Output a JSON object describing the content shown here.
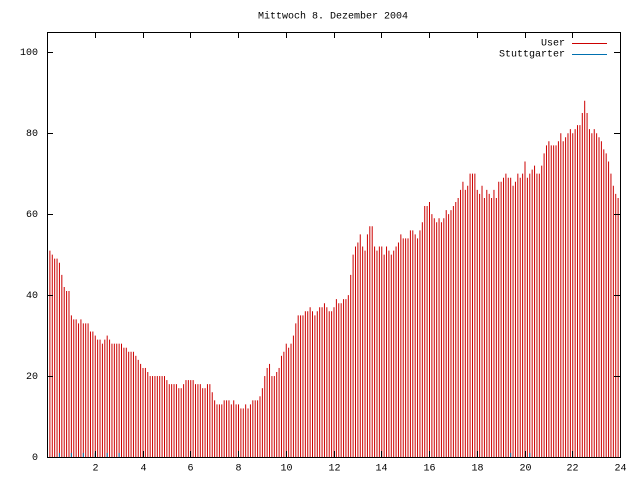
{
  "chart_data": {
    "type": "impulses",
    "title": "Mittwoch 8. Dezember 2004",
    "x": [
      0,
      0.1,
      0.2,
      0.3,
      0.4,
      0.5,
      0.6,
      0.7,
      0.8,
      0.9,
      1,
      1.1,
      1.2,
      1.3,
      1.4,
      1.5,
      1.6,
      1.7,
      1.8,
      1.9,
      2,
      2.1,
      2.2,
      2.3,
      2.4,
      2.5,
      2.6,
      2.7,
      2.8,
      2.9,
      3,
      3.1,
      3.2,
      3.3,
      3.4,
      3.5,
      3.6,
      3.7,
      3.8,
      3.9,
      4,
      4.1,
      4.2,
      4.3,
      4.4,
      4.5,
      4.6,
      4.7,
      4.8,
      4.9,
      5,
      5.1,
      5.2,
      5.3,
      5.4,
      5.5,
      5.6,
      5.7,
      5.8,
      5.9,
      6,
      6.1,
      6.2,
      6.3,
      6.4,
      6.5,
      6.6,
      6.7,
      6.8,
      6.9,
      7,
      7.1,
      7.2,
      7.3,
      7.4,
      7.5,
      7.6,
      7.7,
      7.8,
      7.9,
      8,
      8.1,
      8.2,
      8.3,
      8.4,
      8.5,
      8.6,
      8.7,
      8.8,
      8.9,
      9,
      9.1,
      9.2,
      9.3,
      9.4,
      9.5,
      9.6,
      9.7,
      9.8,
      9.9,
      10,
      10.1,
      10.2,
      10.3,
      10.4,
      10.5,
      10.6,
      10.7,
      10.8,
      10.9,
      11,
      11.1,
      11.2,
      11.3,
      11.4,
      11.5,
      11.6,
      11.7,
      11.8,
      11.9,
      12,
      12.1,
      12.2,
      12.3,
      12.4,
      12.5,
      12.6,
      12.7,
      12.8,
      12.9,
      13,
      13.1,
      13.2,
      13.3,
      13.4,
      13.5,
      13.6,
      13.7,
      13.8,
      13.9,
      14,
      14.1,
      14.2,
      14.3,
      14.4,
      14.5,
      14.6,
      14.7,
      14.8,
      14.9,
      15,
      15.1,
      15.2,
      15.3,
      15.4,
      15.5,
      15.6,
      15.7,
      15.8,
      15.9,
      16,
      16.1,
      16.2,
      16.3,
      16.4,
      16.5,
      16.6,
      16.7,
      16.8,
      16.9,
      17,
      17.1,
      17.2,
      17.3,
      17.4,
      17.5,
      17.6,
      17.7,
      17.8,
      17.9,
      18,
      18.1,
      18.2,
      18.3,
      18.4,
      18.5,
      18.6,
      18.7,
      18.8,
      18.9,
      19,
      19.1,
      19.2,
      19.3,
      19.4,
      19.5,
      19.6,
      19.7,
      19.8,
      19.9,
      20,
      20.1,
      20.2,
      20.3,
      20.4,
      20.5,
      20.6,
      20.7,
      20.8,
      20.9,
      21,
      21.1,
      21.2,
      21.3,
      21.4,
      21.5,
      21.6,
      21.7,
      21.8,
      21.9,
      22,
      22.1,
      22.2,
      22.3,
      22.4,
      22.5,
      22.6,
      22.7,
      22.8,
      22.9,
      23,
      23.1,
      23.2,
      23.3,
      23.4,
      23.5,
      23.6,
      23.7,
      23.8,
      23.9,
      24
    ],
    "series": [
      {
        "name": "User",
        "color": "#cc0000",
        "values": [
          51,
          51,
          50,
          49,
          49,
          48,
          45,
          42,
          41,
          41,
          35,
          34,
          34,
          33,
          34,
          33,
          33,
          33,
          31,
          31,
          30,
          29,
          29,
          28,
          29,
          30,
          29,
          28,
          28,
          28,
          28,
          28,
          27,
          27,
          26,
          26,
          26,
          25,
          24,
          23,
          22,
          22,
          21,
          20,
          20,
          20,
          20,
          20,
          20,
          20,
          19,
          18,
          18,
          18,
          18,
          17,
          17,
          18,
          19,
          19,
          19,
          19,
          18,
          18,
          18,
          17,
          17,
          18,
          18,
          16,
          14,
          13,
          13,
          13,
          14,
          14,
          14,
          13,
          14,
          13,
          13,
          12,
          12,
          13,
          12,
          13,
          14,
          14,
          14,
          15,
          17,
          20,
          22,
          23,
          20,
          20,
          21,
          22,
          25,
          26,
          28,
          27,
          28,
          30,
          33,
          35,
          35,
          35,
          36,
          36,
          37,
          36,
          35,
          36,
          37,
          37,
          38,
          37,
          36,
          36,
          37,
          39,
          38,
          38,
          39,
          39,
          40,
          45,
          50,
          52,
          53,
          55,
          52,
          51,
          55,
          57,
          57,
          52,
          51,
          52,
          52,
          50,
          52,
          51,
          50,
          51,
          52,
          53,
          55,
          54,
          54,
          54,
          56,
          56,
          55,
          54,
          56,
          58,
          62,
          62,
          63,
          60,
          59,
          58,
          59,
          58,
          59,
          61,
          60,
          61,
          62,
          63,
          64,
          66,
          68,
          66,
          67,
          70,
          70,
          70,
          66,
          65,
          67,
          64,
          66,
          65,
          64,
          66,
          64,
          68,
          68,
          69,
          70,
          69,
          69,
          67,
          68,
          70,
          69,
          70,
          73,
          69,
          70,
          71,
          72,
          70,
          70,
          72,
          75,
          77,
          78,
          77,
          77,
          77,
          78,
          80,
          78,
          79,
          80,
          81,
          80,
          81,
          82,
          82,
          85,
          88,
          85,
          81,
          80,
          81,
          80,
          79,
          78,
          76,
          75,
          73,
          70,
          67,
          65,
          64,
          64
        ]
      },
      {
        "name": "Stuttgarter",
        "color": "#0070b0",
        "x": [
          0,
          0.5,
          1,
          1.5,
          2,
          2.5,
          3,
          19.4,
          20.2
        ],
        "values": [
          1,
          1,
          1,
          1,
          1,
          1,
          1,
          1,
          1
        ]
      }
    ],
    "xlim": [
      0,
      24
    ],
    "xticks": [
      2,
      4,
      6,
      8,
      10,
      12,
      14,
      16,
      18,
      20,
      22,
      24
    ],
    "ylim": [
      0,
      105
    ],
    "yticks": [
      0,
      20,
      40,
      60,
      80,
      100
    ]
  }
}
